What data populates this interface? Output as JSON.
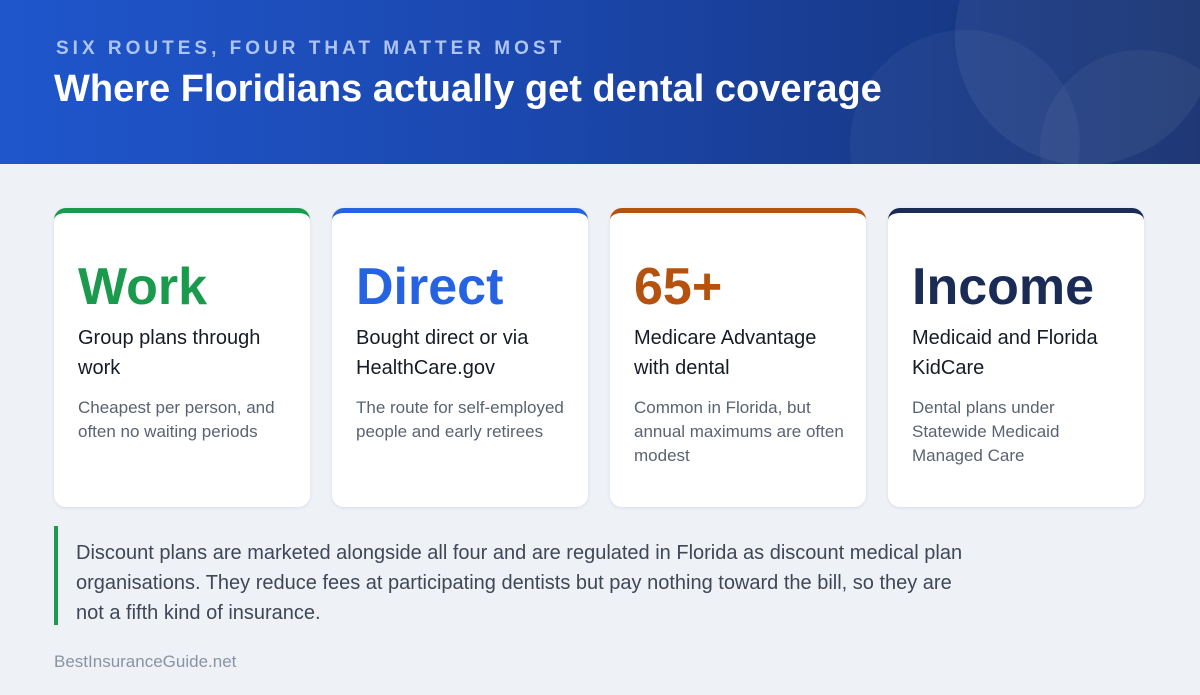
{
  "header": {
    "eyebrow": "SIX ROUTES, FOUR THAT MATTER MOST",
    "title": "Where Floridians actually get dental coverage"
  },
  "cards": [
    {
      "big": "Work",
      "sub": "Group plans through work",
      "desc": "Cheapest per person, and often no waiting periods",
      "color": "#1a9a4d"
    },
    {
      "big": "Direct",
      "sub": "Bought direct or via HealthCare.gov",
      "desc": "The route for self-employed people and early retirees",
      "color": "#2663e3"
    },
    {
      "big": "65+",
      "sub": "Medicare Advantage with dental",
      "desc": "Common in Florida, but annual maximums are often modest",
      "color": "#b5520f"
    },
    {
      "big": "Income",
      "sub": "Medicaid and Florida KidCare",
      "desc": "Dental plans under Statewide Medicaid Managed Care",
      "color": "#1a2b55"
    }
  ],
  "note": {
    "text": "Discount plans are marketed alongside all four and are regulated in Florida as discount medical plan organisations. They reduce fees at participating dentists but pay nothing toward the bill, so they are not a fifth kind of insurance.",
    "accent": "#1a9a4d"
  },
  "footer": {
    "source": "BestInsuranceGuide.net"
  }
}
